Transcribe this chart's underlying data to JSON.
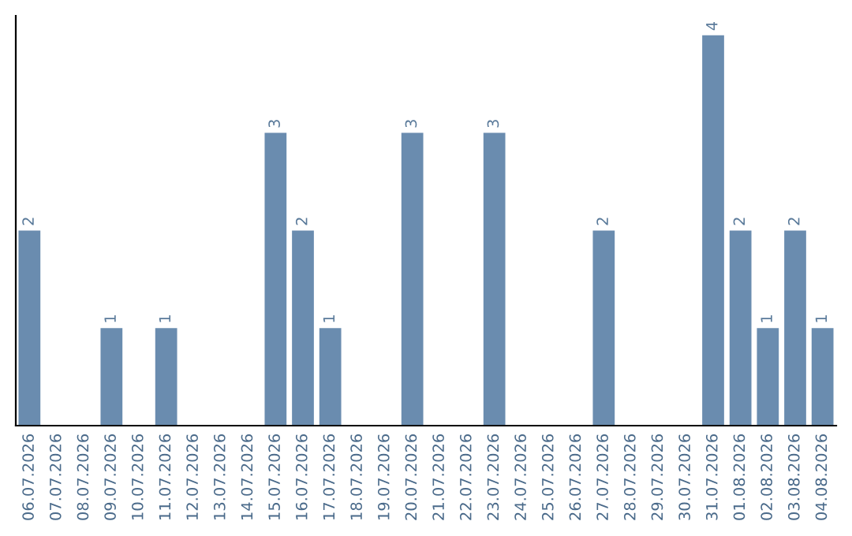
{
  "chart_data": {
    "type": "bar",
    "categories": [
      "06.07.2026",
      "07.07.2026",
      "08.07.2026",
      "09.07.2026",
      "10.07.2026",
      "11.07.2026",
      "12.07.2026",
      "13.07.2026",
      "14.07.2026",
      "15.07.2026",
      "16.07.2026",
      "17.07.2026",
      "18.07.2026",
      "19.07.2026",
      "20.07.2026",
      "21.07.2026",
      "22.07.2026",
      "23.07.2026",
      "24.07.2026",
      "25.07.2026",
      "26.07.2026",
      "27.07.2026",
      "28.07.2026",
      "29.07.2026",
      "30.07.2026",
      "31.07.2026",
      "01.08.2026",
      "02.08.2026",
      "03.08.2026",
      "04.08.2026"
    ],
    "values": [
      2,
      0,
      0,
      1,
      0,
      1,
      0,
      0,
      0,
      3,
      2,
      1,
      0,
      0,
      3,
      0,
      0,
      3,
      0,
      0,
      0,
      2,
      0,
      0,
      0,
      4,
      2,
      1,
      2,
      1
    ],
    "value_labels": [
      "2",
      null,
      null,
      "1",
      null,
      "1",
      null,
      null,
      null,
      "3",
      "2",
      "1",
      null,
      null,
      "3",
      null,
      null,
      "3",
      null,
      null,
      null,
      "2",
      null,
      null,
      null,
      "4",
      "2",
      "1",
      "2",
      "1"
    ],
    "color": "#6a8caf",
    "tick_labels": "x",
    "grid": false,
    "legend": false
  }
}
